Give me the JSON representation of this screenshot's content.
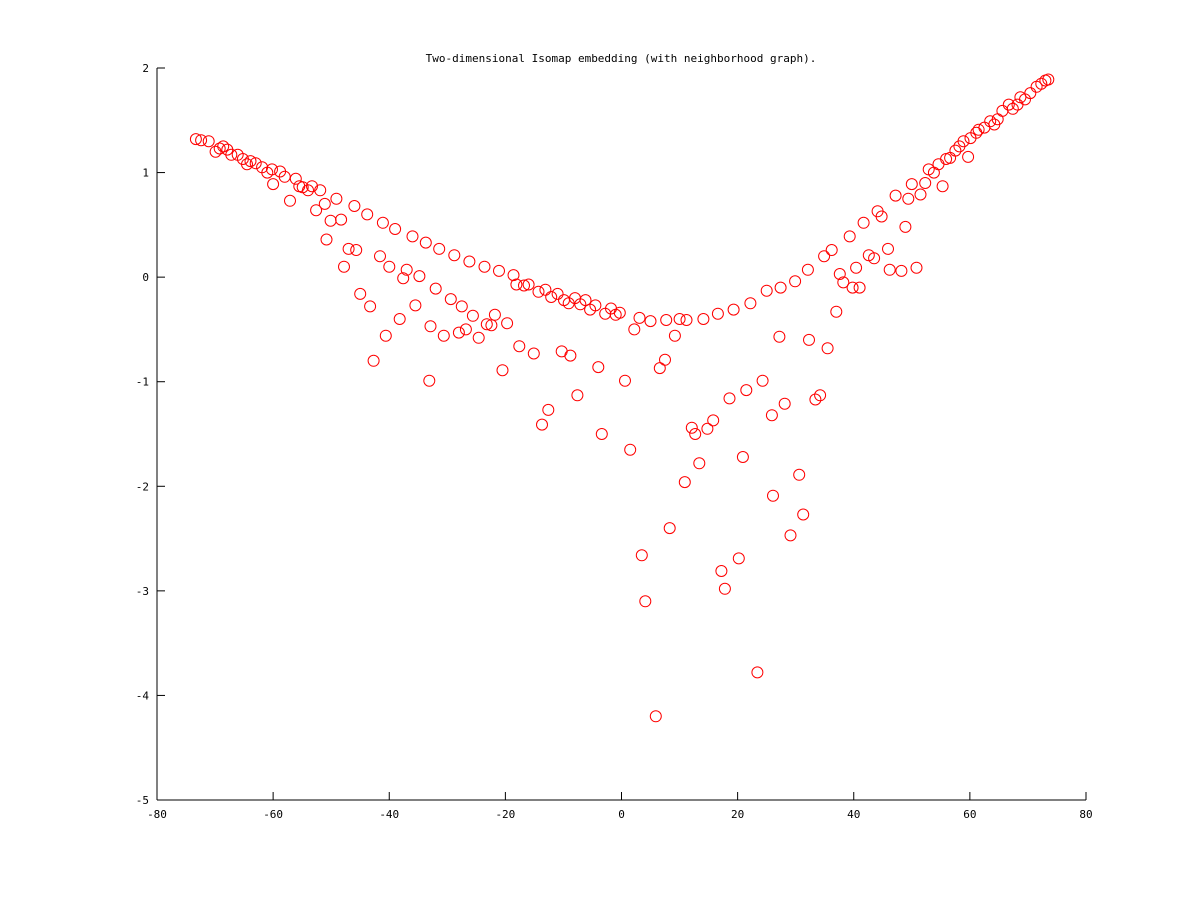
{
  "chart_data": {
    "type": "scatter",
    "title": "Two-dimensional Isomap embedding (with neighborhood graph).",
    "xlabel": "",
    "ylabel": "",
    "xlim": [
      -80,
      80
    ],
    "ylim": [
      -5,
      2
    ],
    "xticks": [
      -80,
      -60,
      -40,
      -20,
      0,
      20,
      40,
      60,
      80
    ],
    "yticks": [
      -5,
      -4,
      -3,
      -2,
      -1,
      0,
      1,
      2
    ],
    "grid": false,
    "marker": "circle-open",
    "color": "#ff0000",
    "points": [
      [
        -73.3,
        1.32
      ],
      [
        -72.4,
        1.31
      ],
      [
        -71.1,
        1.3
      ],
      [
        -69.9,
        1.2
      ],
      [
        -69.2,
        1.23
      ],
      [
        -68.6,
        1.25
      ],
      [
        -67.9,
        1.22
      ],
      [
        -67.2,
        1.17
      ],
      [
        -66.1,
        1.17
      ],
      [
        -65.2,
        1.13
      ],
      [
        -64.5,
        1.08
      ],
      [
        -63.9,
        1.11
      ],
      [
        -63.0,
        1.09
      ],
      [
        -61.9,
        1.05
      ],
      [
        -61.0,
        1.0
      ],
      [
        -60.2,
        1.03
      ],
      [
        -60.0,
        0.89
      ],
      [
        -58.8,
        1.01
      ],
      [
        -58.0,
        0.96
      ],
      [
        -57.1,
        0.73
      ],
      [
        -56.1,
        0.94
      ],
      [
        -55.5,
        0.87
      ],
      [
        -54.9,
        0.86
      ],
      [
        -54.0,
        0.83
      ],
      [
        -53.3,
        0.87
      ],
      [
        -52.6,
        0.64
      ],
      [
        -51.9,
        0.83
      ],
      [
        -51.1,
        0.7
      ],
      [
        -50.8,
        0.36
      ],
      [
        -50.1,
        0.54
      ],
      [
        -49.1,
        0.75
      ],
      [
        -48.3,
        0.55
      ],
      [
        -47.8,
        0.1
      ],
      [
        -47.0,
        0.27
      ],
      [
        -46.0,
        0.68
      ],
      [
        -45.7,
        0.26
      ],
      [
        -45.0,
        -0.16
      ],
      [
        -43.8,
        0.6
      ],
      [
        -43.3,
        -0.28
      ],
      [
        -42.7,
        -0.8
      ],
      [
        -41.6,
        0.2
      ],
      [
        -41.1,
        0.52
      ],
      [
        -40.6,
        -0.56
      ],
      [
        -40.0,
        0.1
      ],
      [
        -39.0,
        0.46
      ],
      [
        -38.2,
        -0.4
      ],
      [
        -37.6,
        -0.01
      ],
      [
        -37.0,
        0.07
      ],
      [
        -36.0,
        0.39
      ],
      [
        -35.5,
        -0.27
      ],
      [
        -34.8,
        0.01
      ],
      [
        -33.7,
        0.33
      ],
      [
        -33.1,
        -0.99
      ],
      [
        -32.9,
        -0.47
      ],
      [
        -32.0,
        -0.11
      ],
      [
        -31.4,
        0.27
      ],
      [
        -30.6,
        -0.56
      ],
      [
        -29.4,
        -0.21
      ],
      [
        -28.8,
        0.21
      ],
      [
        -28.0,
        -0.53
      ],
      [
        -27.5,
        -0.28
      ],
      [
        -26.8,
        -0.5
      ],
      [
        -26.2,
        0.15
      ],
      [
        -25.6,
        -0.37
      ],
      [
        -24.6,
        -0.58
      ],
      [
        -23.6,
        0.1
      ],
      [
        -23.2,
        -0.45
      ],
      [
        -22.4,
        -0.46
      ],
      [
        -21.8,
        -0.36
      ],
      [
        -21.1,
        0.06
      ],
      [
        -20.5,
        -0.89
      ],
      [
        -19.7,
        -0.44
      ],
      [
        -18.6,
        0.02
      ],
      [
        -18.1,
        -0.07
      ],
      [
        -17.6,
        -0.66
      ],
      [
        -16.8,
        -0.08
      ],
      [
        -16.0,
        -0.07
      ],
      [
        -15.1,
        -0.73
      ],
      [
        -14.3,
        -0.14
      ],
      [
        -13.7,
        -1.41
      ],
      [
        -13.1,
        -0.12
      ],
      [
        -12.6,
        -1.27
      ],
      [
        -12.1,
        -0.19
      ],
      [
        -11.0,
        -0.16
      ],
      [
        -10.3,
        -0.71
      ],
      [
        -9.9,
        -0.22
      ],
      [
        -9.1,
        -0.25
      ],
      [
        -8.8,
        -0.75
      ],
      [
        -8.0,
        -0.2
      ],
      [
        -7.6,
        -1.13
      ],
      [
        -7.1,
        -0.26
      ],
      [
        -6.2,
        -0.22
      ],
      [
        -5.4,
        -0.31
      ],
      [
        -4.5,
        -0.27
      ],
      [
        -4.0,
        -0.86
      ],
      [
        -3.4,
        -1.5
      ],
      [
        -2.8,
        -0.35
      ],
      [
        -1.8,
        -0.3
      ],
      [
        -1.0,
        -0.36
      ],
      [
        -0.3,
        -0.34
      ],
      [
        0.6,
        -0.99
      ],
      [
        1.5,
        -1.65
      ],
      [
        2.2,
        -0.5
      ],
      [
        3.1,
        -0.39
      ],
      [
        3.5,
        -2.66
      ],
      [
        4.1,
        -3.1
      ],
      [
        5.0,
        -0.42
      ],
      [
        5.9,
        -4.2
      ],
      [
        6.6,
        -0.87
      ],
      [
        7.5,
        -0.79
      ],
      [
        7.7,
        -0.41
      ],
      [
        8.3,
        -2.4
      ],
      [
        9.2,
        -0.56
      ],
      [
        10.0,
        -0.4
      ],
      [
        10.9,
        -1.96
      ],
      [
        11.2,
        -0.41
      ],
      [
        12.1,
        -1.44
      ],
      [
        12.7,
        -1.5
      ],
      [
        13.4,
        -1.78
      ],
      [
        14.1,
        -0.4
      ],
      [
        14.8,
        -1.45
      ],
      [
        15.8,
        -1.37
      ],
      [
        16.6,
        -0.35
      ],
      [
        17.2,
        -2.81
      ],
      [
        17.8,
        -2.98
      ],
      [
        18.6,
        -1.16
      ],
      [
        19.3,
        -0.31
      ],
      [
        20.2,
        -2.69
      ],
      [
        20.9,
        -1.72
      ],
      [
        21.5,
        -1.08
      ],
      [
        22.2,
        -0.25
      ],
      [
        23.4,
        -3.78
      ],
      [
        24.3,
        -0.99
      ],
      [
        25.0,
        -0.13
      ],
      [
        25.9,
        -1.32
      ],
      [
        26.1,
        -2.09
      ],
      [
        27.2,
        -0.57
      ],
      [
        27.4,
        -0.1
      ],
      [
        28.1,
        -1.21
      ],
      [
        29.1,
        -2.47
      ],
      [
        29.9,
        -0.04
      ],
      [
        30.6,
        -1.89
      ],
      [
        31.3,
        -2.27
      ],
      [
        32.1,
        0.07
      ],
      [
        32.3,
        -0.6
      ],
      [
        33.4,
        -1.17
      ],
      [
        34.2,
        -1.13
      ],
      [
        34.9,
        0.2
      ],
      [
        35.5,
        -0.68
      ],
      [
        36.2,
        0.26
      ],
      [
        37.0,
        -0.33
      ],
      [
        37.6,
        0.03
      ],
      [
        38.2,
        -0.05
      ],
      [
        39.3,
        0.39
      ],
      [
        39.8,
        -0.1
      ],
      [
        40.4,
        0.09
      ],
      [
        41.0,
        -0.1
      ],
      [
        41.7,
        0.52
      ],
      [
        42.6,
        0.21
      ],
      [
        43.5,
        0.18
      ],
      [
        44.1,
        0.63
      ],
      [
        44.8,
        0.58
      ],
      [
        45.9,
        0.27
      ],
      [
        46.2,
        0.07
      ],
      [
        47.2,
        0.78
      ],
      [
        48.2,
        0.06
      ],
      [
        48.9,
        0.48
      ],
      [
        49.4,
        0.75
      ],
      [
        50.0,
        0.89
      ],
      [
        50.8,
        0.09
      ],
      [
        51.5,
        0.79
      ],
      [
        52.3,
        0.9
      ],
      [
        52.9,
        1.03
      ],
      [
        53.8,
        1.0
      ],
      [
        54.6,
        1.08
      ],
      [
        55.3,
        0.87
      ],
      [
        55.9,
        1.13
      ],
      [
        56.6,
        1.14
      ],
      [
        57.5,
        1.21
      ],
      [
        58.2,
        1.25
      ],
      [
        58.9,
        1.3
      ],
      [
        59.7,
        1.15
      ],
      [
        60.1,
        1.33
      ],
      [
        61.1,
        1.38
      ],
      [
        61.5,
        1.41
      ],
      [
        62.5,
        1.43
      ],
      [
        63.5,
        1.49
      ],
      [
        64.2,
        1.46
      ],
      [
        64.8,
        1.51
      ],
      [
        65.6,
        1.59
      ],
      [
        66.7,
        1.65
      ],
      [
        67.4,
        1.61
      ],
      [
        68.2,
        1.65
      ],
      [
        68.7,
        1.72
      ],
      [
        69.5,
        1.7
      ],
      [
        70.4,
        1.76
      ],
      [
        71.5,
        1.82
      ],
      [
        72.3,
        1.85
      ],
      [
        73.0,
        1.88
      ],
      [
        73.5,
        1.89
      ]
    ]
  }
}
